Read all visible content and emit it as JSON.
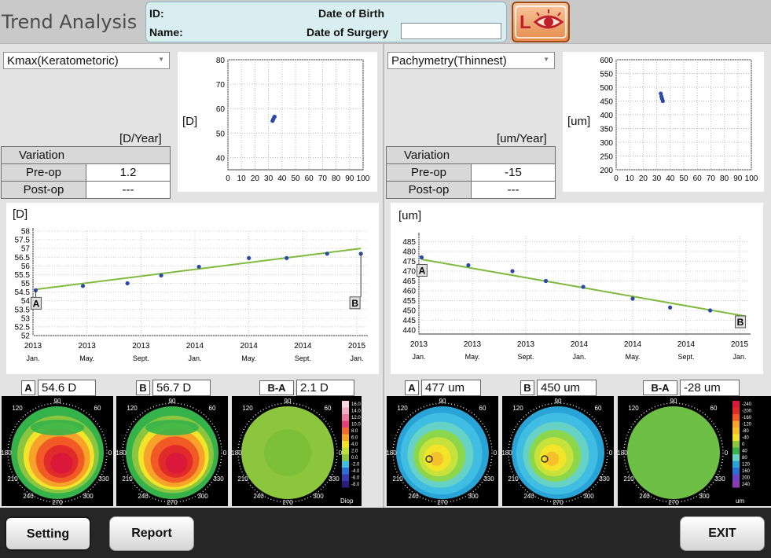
{
  "header": {
    "title": "Trend Analysis",
    "id_label": "ID:",
    "name_label": "Name:",
    "dob_label": "Date of Birth",
    "dos_label": "Date of Surgery",
    "dos_value": ""
  },
  "left": {
    "selector": "Kmax(Keratometoric)",
    "unit_rate": "[D/Year]",
    "variation_label": "Variation",
    "preop_label": "Pre-op",
    "preop_value": "1.2",
    "postop_label": "Post-op",
    "postop_value": "---",
    "scatter_unit": "[D]",
    "trend_unit": "[D]",
    "map_a_label": "A",
    "map_a_value": "54.6 D",
    "map_b_label": "B",
    "map_b_value": "56.7 D",
    "map_diff_label": "B-A",
    "map_diff_value": "2.1 D",
    "diff_unit": "Diop",
    "diff_scale": [
      "16.0",
      "14.0",
      "12.0",
      "10.0",
      "8.0",
      "6.0",
      "4.0",
      "2.0",
      "0.0",
      "-2.0",
      "-4.0",
      "-6.0",
      "-8.0"
    ]
  },
  "right": {
    "selector": "Pachymetry(Thinnest)",
    "unit_rate": "[um/Year]",
    "variation_label": "Variation",
    "preop_label": "Pre-op",
    "preop_value": "-15",
    "postop_label": "Post-op",
    "postop_value": "---",
    "scatter_unit": "[um]",
    "trend_unit": "[um]",
    "map_a_label": "A",
    "map_a_value": "477 um",
    "map_b_label": "B",
    "map_b_value": "450 um",
    "map_diff_label": "B-A",
    "map_diff_value": "-28 um",
    "diff_unit": "um",
    "diff_scale": [
      "-240",
      "-200",
      "-160",
      "-120",
      "-80",
      "-40",
      "0",
      "40",
      "80",
      "120",
      "160",
      "200",
      "240"
    ]
  },
  "polar_labels": {
    "top": "90",
    "tl": "120",
    "tr": "60",
    "left": "180",
    "right": "0",
    "bl": "210",
    "br": "330",
    "bl2": "240",
    "br2": "300",
    "bottom": "270"
  },
  "footer": {
    "setting": "Setting",
    "report": "Report",
    "exit": "EXIT"
  },
  "chart_data": [
    {
      "type": "scatter",
      "name": "left-age-scatter",
      "ylabel": "[D]",
      "x_ticks": [
        "0",
        "10",
        "20",
        "30",
        "40",
        "50",
        "60",
        "70",
        "80",
        "90",
        "100"
      ],
      "y_ticks": [
        "40",
        "50",
        "60",
        "70",
        "80"
      ],
      "xlim": [
        0,
        100
      ],
      "ylim": [
        35,
        80
      ],
      "points": [
        {
          "x": 33,
          "y": 55
        },
        {
          "x": 33.5,
          "y": 55.6
        },
        {
          "x": 34,
          "y": 56.2
        },
        {
          "x": 34.5,
          "y": 56.7
        }
      ],
      "grid": true
    },
    {
      "type": "scatter",
      "name": "right-age-scatter",
      "ylabel": "[um]",
      "x_ticks": [
        "0",
        "10",
        "20",
        "30",
        "40",
        "50",
        "60",
        "70",
        "80",
        "90",
        "100"
      ],
      "y_ticks": [
        "200",
        "250",
        "300",
        "350",
        "400",
        "450",
        "500",
        "550",
        "600"
      ],
      "xlim": [
        0,
        100
      ],
      "ylim": [
        200,
        600
      ],
      "points": [
        {
          "x": 33,
          "y": 477
        },
        {
          "x": 33.5,
          "y": 466
        },
        {
          "x": 34,
          "y": 458
        },
        {
          "x": 34.5,
          "y": 450
        }
      ],
      "grid": true
    },
    {
      "type": "line",
      "name": "kmax-trend",
      "ylabel": "[D]",
      "x_ticks": [
        {
          "top": "2013",
          "bottom": "Jan."
        },
        {
          "top": "2013",
          "bottom": "May."
        },
        {
          "top": "2013",
          "bottom": "Sept."
        },
        {
          "top": "2014",
          "bottom": "Jan."
        },
        {
          "top": "2014",
          "bottom": "May."
        },
        {
          "top": "2014",
          "bottom": "Sept."
        },
        {
          "top": "2015",
          "bottom": "Jan."
        }
      ],
      "y_ticks": [
        "52",
        "52.5",
        "53",
        "53.5",
        "54",
        "54.5",
        "55",
        "55.5",
        "56",
        "56.5",
        "57",
        "57.5",
        "58"
      ],
      "xlim": [
        0,
        24
      ],
      "ylim": [
        52,
        58
      ],
      "points": [
        {
          "x": 0.2,
          "y": 54.6
        },
        {
          "x": 3.7,
          "y": 54.85
        },
        {
          "x": 7,
          "y": 55.0
        },
        {
          "x": 9.5,
          "y": 55.45
        },
        {
          "x": 12.3,
          "y": 55.95
        },
        {
          "x": 16,
          "y": 56.45
        },
        {
          "x": 18.8,
          "y": 56.45
        },
        {
          "x": 21.8,
          "y": 56.7
        },
        {
          "x": 24.3,
          "y": 56.7
        }
      ],
      "trend": [
        {
          "x": 0.2,
          "y": 54.65
        },
        {
          "x": 24.3,
          "y": 57.0
        }
      ],
      "markers": [
        {
          "label": "A",
          "x": 0.2
        },
        {
          "label": "B",
          "x": 24.3
        }
      ],
      "grid": true
    },
    {
      "type": "line",
      "name": "pachy-trend",
      "ylabel": "[um]",
      "x_ticks": [
        {
          "top": "2013",
          "bottom": "Jan."
        },
        {
          "top": "2013",
          "bottom": "May."
        },
        {
          "top": "2013",
          "bottom": "Sept."
        },
        {
          "top": "2014",
          "bottom": "Jan."
        },
        {
          "top": "2014",
          "bottom": "May."
        },
        {
          "top": "2014",
          "bottom": "Sept."
        },
        {
          "top": "2015",
          "bottom": "Jan."
        }
      ],
      "y_ticks": [
        "440",
        "445",
        "450",
        "455",
        "460",
        "465",
        "470",
        "475",
        "480",
        "485"
      ],
      "xlim": [
        0,
        24
      ],
      "ylim": [
        438,
        488
      ],
      "points": [
        {
          "x": 0.2,
          "y": 477
        },
        {
          "x": 3.7,
          "y": 473
        },
        {
          "x": 7,
          "y": 470
        },
        {
          "x": 9.5,
          "y": 465
        },
        {
          "x": 12.3,
          "y": 462
        },
        {
          "x": 16,
          "y": 456
        },
        {
          "x": 18.8,
          "y": 451.5
        },
        {
          "x": 21.8,
          "y": 450
        }
      ],
      "trend": [
        {
          "x": 0.2,
          "y": 476
        },
        {
          "x": 24.5,
          "y": 447
        }
      ],
      "markers": [
        {
          "label": "A",
          "x": 0.2
        },
        {
          "label": "B",
          "x": 24.5
        }
      ],
      "grid": true
    }
  ]
}
